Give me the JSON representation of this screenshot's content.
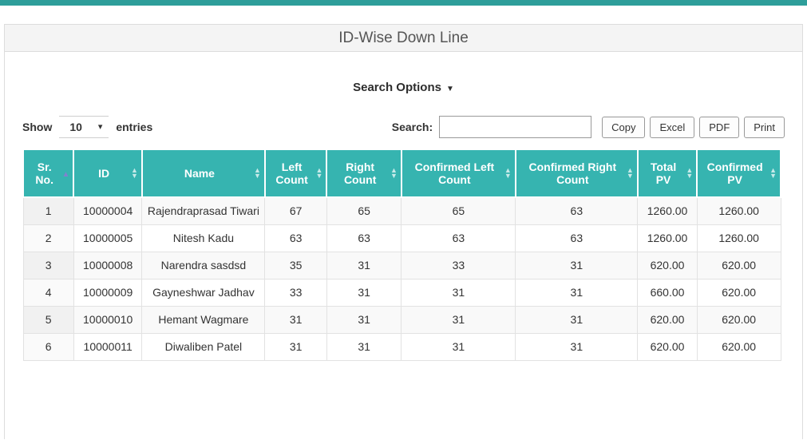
{
  "colors": {
    "accent_teal": "#36b4b0",
    "top_bar_teal": "#2e9e9a",
    "sorted_arrow_purple": "#8181cf",
    "panel_header_bg": "#f4f4f4"
  },
  "panel": {
    "title": "ID-Wise Down Line"
  },
  "search_options": {
    "label": "Search Options"
  },
  "controls": {
    "show_label": "Show",
    "entries_label": "entries",
    "page_size": "10",
    "search_label": "Search:",
    "search_value": "",
    "buttons": {
      "copy": "Copy",
      "excel": "Excel",
      "pdf": "PDF",
      "print": "Print"
    }
  },
  "table": {
    "columns": [
      {
        "label": "Sr. No.",
        "sort": "asc"
      },
      {
        "label": "ID",
        "sort": "both"
      },
      {
        "label": "Name",
        "sort": "both"
      },
      {
        "label": "Left Count",
        "sort": "both"
      },
      {
        "label": "Right Count",
        "sort": "both"
      },
      {
        "label": "Confirmed Left Count",
        "sort": "both"
      },
      {
        "label": "Confirmed Right Count",
        "sort": "both"
      },
      {
        "label": "Total PV",
        "sort": "both"
      },
      {
        "label": "Confirmed PV",
        "sort": "both"
      }
    ],
    "rows": [
      {
        "sr": "1",
        "id": "10000004",
        "name": "Rajendraprasad Tiwari",
        "left_count": "67",
        "right_count": "65",
        "confirmed_left": "65",
        "confirmed_right": "63",
        "total_pv": "1260.00",
        "confirmed_pv": "1260.00"
      },
      {
        "sr": "2",
        "id": "10000005",
        "name": "Nitesh Kadu",
        "left_count": "63",
        "right_count": "63",
        "confirmed_left": "63",
        "confirmed_right": "63",
        "total_pv": "1260.00",
        "confirmed_pv": "1260.00"
      },
      {
        "sr": "3",
        "id": "10000008",
        "name": "Narendra sasdsd",
        "left_count": "35",
        "right_count": "31",
        "confirmed_left": "33",
        "confirmed_right": "31",
        "total_pv": "620.00",
        "confirmed_pv": "620.00"
      },
      {
        "sr": "4",
        "id": "10000009",
        "name": "Gayneshwar Jadhav",
        "left_count": "33",
        "right_count": "31",
        "confirmed_left": "31",
        "confirmed_right": "31",
        "total_pv": "660.00",
        "confirmed_pv": "620.00"
      },
      {
        "sr": "5",
        "id": "10000010",
        "name": "Hemant Wagmare",
        "left_count": "31",
        "right_count": "31",
        "confirmed_left": "31",
        "confirmed_right": "31",
        "total_pv": "620.00",
        "confirmed_pv": "620.00"
      },
      {
        "sr": "6",
        "id": "10000011",
        "name": "Diwaliben Patel",
        "left_count": "31",
        "right_count": "31",
        "confirmed_left": "31",
        "confirmed_right": "31",
        "total_pv": "620.00",
        "confirmed_pv": "620.00"
      }
    ]
  }
}
